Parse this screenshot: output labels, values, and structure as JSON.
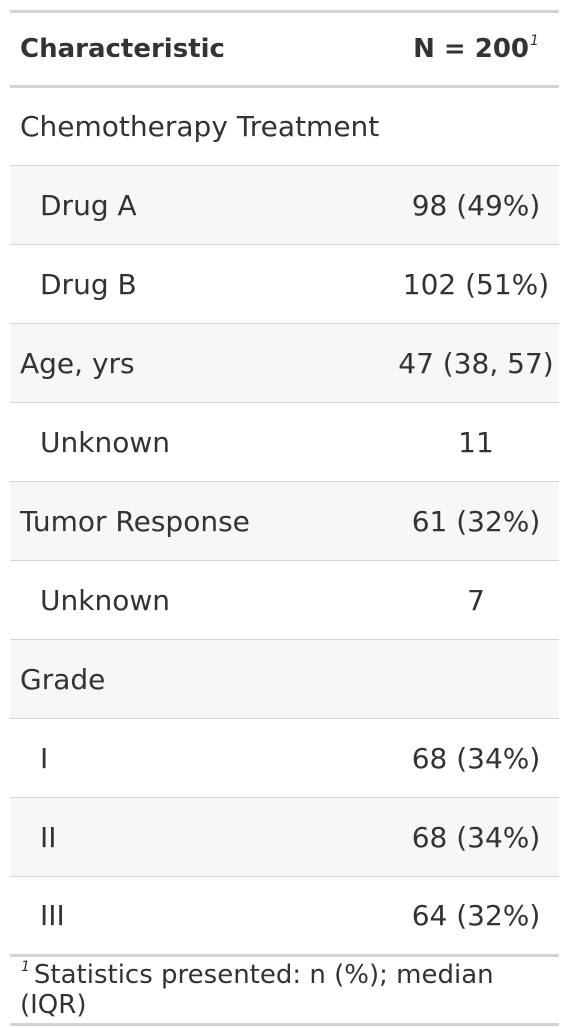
{
  "header": {
    "characteristic": "Characteristic",
    "n": "N = 200",
    "footnote_marker": "1"
  },
  "rows": [
    {
      "label": "Chemotherapy Treatment",
      "value": ""
    },
    {
      "label": "Drug A",
      "value": "98 (49%)"
    },
    {
      "label": "Drug B",
      "value": "102 (51%)"
    },
    {
      "label": "Age, yrs",
      "value": "47 (38, 57)"
    },
    {
      "label": "Unknown",
      "value": "11"
    },
    {
      "label": "Tumor Response",
      "value": "61 (32%)"
    },
    {
      "label": "Unknown",
      "value": "7"
    },
    {
      "label": "Grade",
      "value": ""
    },
    {
      "label": "I",
      "value": "68 (34%)"
    },
    {
      "label": "II",
      "value": "68 (34%)"
    },
    {
      "label": "III",
      "value": "64 (32%)"
    }
  ],
  "footnote": {
    "marker": "1",
    "text": "Statistics presented: n (%); median (IQR)"
  }
}
